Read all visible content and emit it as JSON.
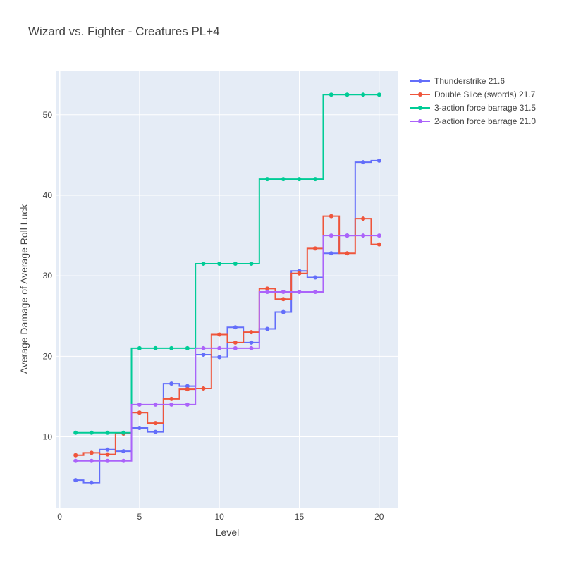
{
  "chart_data": {
    "type": "line",
    "line_shape": "step-centered",
    "title": "Wizard vs. Fighter - Creatures PL+4",
    "xlabel": "Level",
    "ylabel": "Average Damage of Average Roll Luck",
    "xlim": [
      -0.2,
      21.2
    ],
    "ylim": [
      1.2,
      55.5
    ],
    "xticks": [
      0,
      5,
      10,
      15,
      20
    ],
    "yticks": [
      10,
      20,
      30,
      40,
      50
    ],
    "grid": true,
    "legend_position": "top-right",
    "x": [
      1,
      2,
      3,
      4,
      5,
      6,
      7,
      8,
      9,
      10,
      11,
      12,
      13,
      14,
      15,
      16,
      17,
      18,
      19,
      20
    ],
    "series": [
      {
        "name": "Thunderstrike 21.6",
        "color": "#636efa",
        "values": [
          4.6,
          4.3,
          8.4,
          8.2,
          11.1,
          10.6,
          16.6,
          16.3,
          20.2,
          19.9,
          23.6,
          21.7,
          23.4,
          25.5,
          30.6,
          29.8,
          32.8,
          35.0,
          44.1,
          44.3
        ]
      },
      {
        "name": "Double Slice (swords) 21.7",
        "color": "#ef553b",
        "values": [
          7.7,
          8.0,
          7.8,
          10.4,
          13.0,
          11.7,
          14.7,
          15.9,
          16.0,
          22.7,
          21.7,
          23.0,
          28.4,
          27.1,
          30.3,
          33.4,
          37.4,
          32.8,
          37.1,
          33.9
        ]
      },
      {
        "name": "3-action force barrage 31.5",
        "color": "#00cc96",
        "values": [
          10.5,
          10.5,
          10.5,
          10.5,
          21.0,
          21.0,
          21.0,
          21.0,
          31.5,
          31.5,
          31.5,
          31.5,
          42.0,
          42.0,
          42.0,
          42.0,
          52.5,
          52.5,
          52.5,
          52.5
        ]
      },
      {
        "name": "2-action force barrage 21.0",
        "color": "#ab63fa",
        "values": [
          7.0,
          7.0,
          7.0,
          7.0,
          14.0,
          14.0,
          14.0,
          14.0,
          21.0,
          21.0,
          21.0,
          21.0,
          28.0,
          28.0,
          28.0,
          28.0,
          35.0,
          35.0,
          35.0,
          35.0
        ]
      }
    ]
  }
}
